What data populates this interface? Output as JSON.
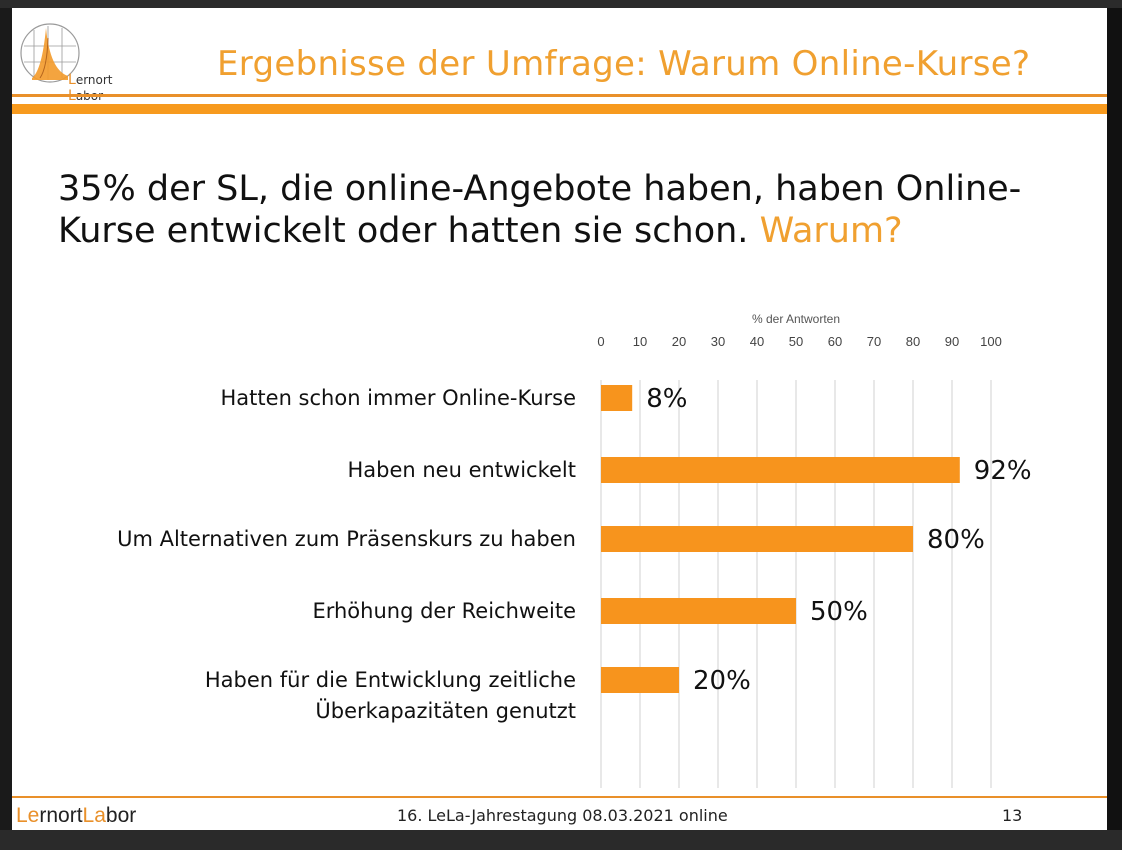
{
  "slide": {
    "logo": {
      "prefix_accent": "L",
      "prefix_rest": "ernort ",
      "suffix_accent": "L",
      "suffix_rest": "abor"
    },
    "title": "Ergebnisse der Umfrage: Warum Online-Kurse?",
    "lead_text": "35% der SL, die online-Angebote haben, haben Online-Kurse entwickelt oder hatten sie schon.",
    "lead_accent": "Warum?",
    "footer": {
      "brand_le": "Le",
      "brand_rnort": "rnort",
      "brand_la": "La",
      "brand_bor": "bor",
      "event": "16. LeLa-Jahrestagung 08.03.2021 online",
      "page": "13"
    }
  },
  "colors": {
    "accent": "#f0a030",
    "bar": "#f7941d",
    "grid": "#d9d9d9"
  },
  "chart_data": {
    "type": "bar",
    "orientation": "horizontal",
    "title": "% der Antworten",
    "categories": [
      [
        "Hatten schon immer Online-Kurse"
      ],
      [
        "Haben neu entwickelt"
      ],
      [
        "Um Alternativen zum Präsenskurs zu haben"
      ],
      [
        "Erhöhung der Reichweite"
      ],
      [
        "Haben für die Entwicklung zeitliche",
        "Überkapazitäten genutzt"
      ]
    ],
    "values": [
      8,
      92,
      80,
      50,
      20
    ],
    "data_labels": [
      "8%",
      "92%",
      "80%",
      "50%",
      "20%"
    ],
    "ticks": [
      "0",
      "10",
      "20",
      "30",
      "40",
      "50",
      "60",
      "70",
      "80",
      "90",
      "100"
    ],
    "xlim": [
      0,
      100
    ],
    "grid": true,
    "legend": "none"
  }
}
